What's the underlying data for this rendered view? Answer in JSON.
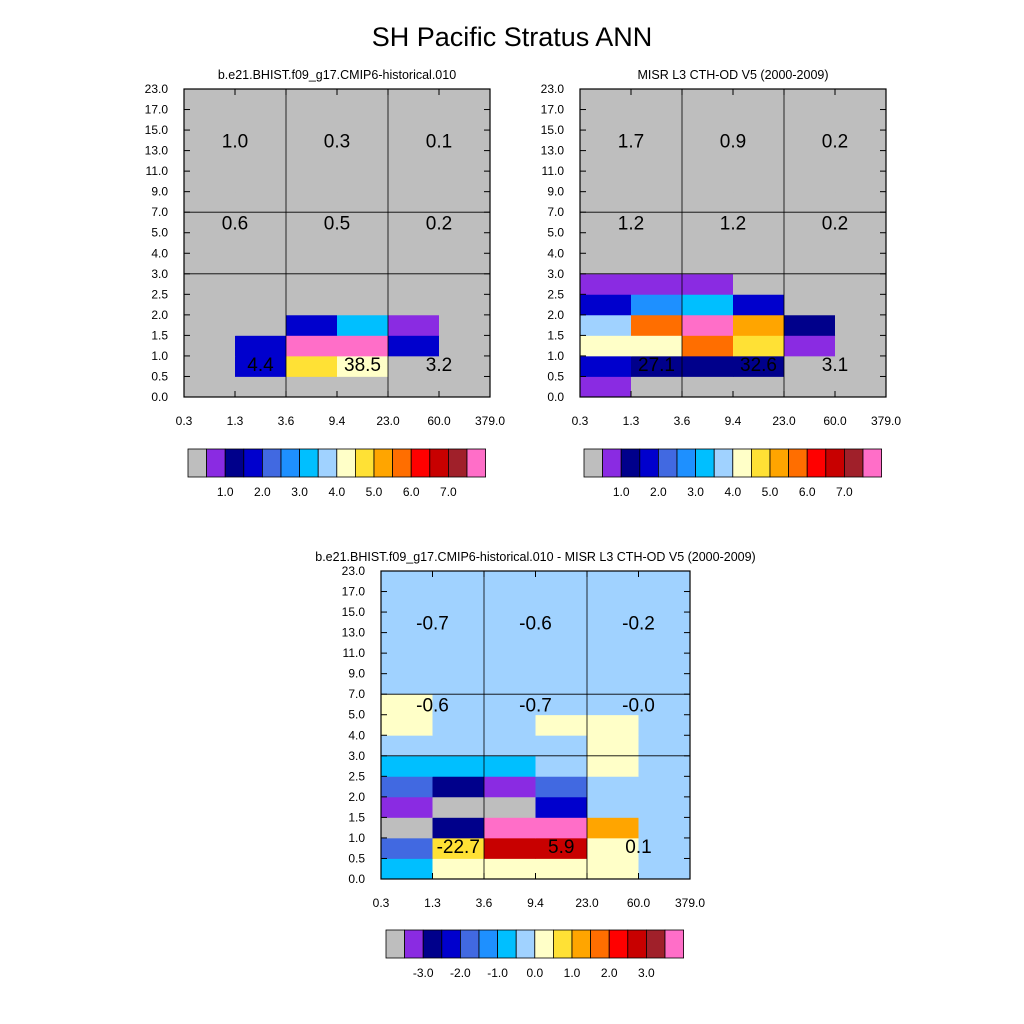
{
  "title": "SH Pacific Stratus ANN",
  "colors": {
    "missing": "#bebebe",
    "border": "#000000",
    "divider": "#000000"
  },
  "palette": [
    "#bebebe",
    "#8a2be2",
    "#00008b",
    "#0000cd",
    "#4169e1",
    "#1e90ff",
    "#00bfff",
    "#a0d2ff",
    "#ffffc8",
    "#ffe135",
    "#ffa500",
    "#ff6e00",
    "#ff0000",
    "#c80000",
    "#a0202a",
    "#ff6ec8"
  ],
  "x_ticks": [
    "0.3",
    "1.3",
    "3.6",
    "9.4",
    "23.0",
    "60.0",
    "379.0"
  ],
  "y_ticks": [
    "0.0",
    "0.5",
    "1.0",
    "1.5",
    "2.0",
    "2.5",
    "3.0",
    "4.0",
    "5.0",
    "7.0",
    "9.0",
    "11.0",
    "13.0",
    "15.0",
    "17.0",
    "23.0"
  ],
  "chart_data": [
    {
      "type": "heatmap",
      "title": "b.e21.BHIST.f09_g17.CMIP6-historical.010",
      "xlabel": "",
      "ylabel": "",
      "x_bins": [
        "0.3",
        "1.3",
        "3.6",
        "9.4",
        "23.0",
        "60.0",
        "379.0"
      ],
      "y_bins": [
        "0.0",
        "0.5",
        "1.0",
        "1.5",
        "2.0",
        "2.5",
        "3.0",
        "4.0",
        "5.0",
        "7.0",
        "9.0",
        "11.0",
        "13.0",
        "15.0",
        "17.0",
        "23.0"
      ],
      "cell_color_index": [
        [
          0,
          0,
          0,
          0,
          0,
          0
        ],
        [
          0,
          3,
          9,
          8,
          0,
          0
        ],
        [
          0,
          3,
          15,
          15,
          3,
          0
        ],
        [
          0,
          0,
          3,
          6,
          1,
          0
        ],
        [
          0,
          0,
          0,
          0,
          0,
          0
        ],
        [
          0,
          0,
          0,
          0,
          0,
          0
        ],
        [
          0,
          0,
          0,
          0,
          0,
          0
        ],
        [
          0,
          0,
          0,
          0,
          0,
          0
        ],
        [
          0,
          0,
          0,
          0,
          0,
          0
        ],
        [
          0,
          0,
          0,
          0,
          0,
          0
        ],
        [
          0,
          0,
          0,
          0,
          0,
          0
        ],
        [
          0,
          0,
          0,
          0,
          0,
          0
        ],
        [
          0,
          0,
          0,
          0,
          0,
          0
        ],
        [
          0,
          0,
          0,
          0,
          0,
          0
        ],
        [
          0,
          0,
          0,
          0,
          0,
          0
        ]
      ],
      "summary_values": [
        {
          "value": "4.4",
          "x": 1.5,
          "y": 1.6
        },
        {
          "value": "38.5",
          "x": 3.5,
          "y": 1.6
        },
        {
          "value": "3.2",
          "x": 5,
          "y": 1.6
        },
        {
          "value": "0.6",
          "x": 1,
          "y": 8.5
        },
        {
          "value": "0.5",
          "x": 3,
          "y": 8.5
        },
        {
          "value": "0.2",
          "x": 5,
          "y": 8.5
        },
        {
          "value": "1.0",
          "x": 1,
          "y": 12.5
        },
        {
          "value": "0.3",
          "x": 3,
          "y": 12.5
        },
        {
          "value": "0.1",
          "x": 5,
          "y": 12.5
        }
      ],
      "colorbar_labels": [
        "1.0",
        "2.0",
        "3.0",
        "4.0",
        "5.0",
        "6.0",
        "7.0"
      ]
    },
    {
      "type": "heatmap",
      "title": "MISR L3 CTH-OD V5 (2000-2009)",
      "xlabel": "",
      "ylabel": "",
      "x_bins": [
        "0.3",
        "1.3",
        "3.6",
        "9.4",
        "23.0",
        "60.0",
        "379.0"
      ],
      "y_bins": [
        "0.0",
        "0.5",
        "1.0",
        "1.5",
        "2.0",
        "2.5",
        "3.0",
        "4.0",
        "5.0",
        "7.0",
        "9.0",
        "11.0",
        "13.0",
        "15.0",
        "17.0",
        "23.0"
      ],
      "cell_color_index": [
        [
          1,
          0,
          0,
          0,
          0,
          0
        ],
        [
          3,
          2,
          2,
          2,
          0,
          0
        ],
        [
          8,
          8,
          11,
          9,
          1,
          0
        ],
        [
          7,
          11,
          15,
          10,
          2,
          0
        ],
        [
          3,
          5,
          6,
          3,
          0,
          0
        ],
        [
          1,
          1,
          1,
          0,
          0,
          0
        ],
        [
          0,
          0,
          0,
          0,
          0,
          0
        ],
        [
          0,
          0,
          0,
          0,
          0,
          0
        ],
        [
          0,
          0,
          0,
          0,
          0,
          0
        ],
        [
          0,
          0,
          0,
          0,
          0,
          0
        ],
        [
          0,
          0,
          0,
          0,
          0,
          0
        ],
        [
          0,
          0,
          0,
          0,
          0,
          0
        ],
        [
          0,
          0,
          0,
          0,
          0,
          0
        ],
        [
          0,
          0,
          0,
          0,
          0,
          0
        ],
        [
          0,
          0,
          0,
          0,
          0,
          0
        ]
      ],
      "summary_values": [
        {
          "value": "27.1",
          "x": 1.5,
          "y": 1.6
        },
        {
          "value": "32.6",
          "x": 3.5,
          "y": 1.6
        },
        {
          "value": "3.1",
          "x": 5,
          "y": 1.6
        },
        {
          "value": "1.2",
          "x": 1,
          "y": 8.5
        },
        {
          "value": "1.2",
          "x": 3,
          "y": 8.5
        },
        {
          "value": "0.2",
          "x": 5,
          "y": 8.5
        },
        {
          "value": "1.7",
          "x": 1,
          "y": 12.5
        },
        {
          "value": "0.9",
          "x": 3,
          "y": 12.5
        },
        {
          "value": "0.2",
          "x": 5,
          "y": 12.5
        }
      ],
      "colorbar_labels": [
        "1.0",
        "2.0",
        "3.0",
        "4.0",
        "5.0",
        "6.0",
        "7.0"
      ]
    },
    {
      "type": "heatmap",
      "title": "b.e21.BHIST.f09_g17.CMIP6-historical.010 - MISR L3 CTH-OD V5 (2000-2009)",
      "xlabel": "",
      "ylabel": "",
      "x_bins": [
        "0.3",
        "1.3",
        "3.6",
        "9.4",
        "23.0",
        "60.0",
        "379.0"
      ],
      "y_bins": [
        "0.0",
        "0.5",
        "1.0",
        "1.5",
        "2.0",
        "2.5",
        "3.0",
        "4.0",
        "5.0",
        "7.0",
        "9.0",
        "11.0",
        "13.0",
        "15.0",
        "17.0",
        "23.0"
      ],
      "cell_color_index": [
        [
          6,
          8,
          8,
          8,
          8,
          7
        ],
        [
          4,
          9,
          13,
          13,
          8,
          7
        ],
        [
          0,
          2,
          15,
          15,
          10,
          7
        ],
        [
          1,
          0,
          0,
          3,
          7,
          7
        ],
        [
          4,
          2,
          1,
          4,
          7,
          7
        ],
        [
          6,
          6,
          6,
          7,
          8,
          7
        ],
        [
          7,
          7,
          7,
          7,
          8,
          7
        ],
        [
          8,
          7,
          7,
          8,
          8,
          7
        ],
        [
          8,
          7,
          7,
          7,
          7,
          7
        ],
        [
          7,
          7,
          7,
          7,
          7,
          7
        ],
        [
          7,
          7,
          7,
          7,
          7,
          7
        ],
        [
          7,
          7,
          7,
          7,
          7,
          7
        ],
        [
          7,
          7,
          7,
          7,
          7,
          7
        ],
        [
          7,
          7,
          7,
          7,
          7,
          7
        ],
        [
          7,
          7,
          7,
          7,
          7,
          7
        ]
      ],
      "summary_values": [
        {
          "value": "-22.7",
          "x": 1.5,
          "y": 1.6
        },
        {
          "value": "5.9",
          "x": 3.5,
          "y": 1.6
        },
        {
          "value": "0.1",
          "x": 5,
          "y": 1.6
        },
        {
          "value": "-0.6",
          "x": 1,
          "y": 8.5
        },
        {
          "value": "-0.7",
          "x": 3,
          "y": 8.5
        },
        {
          "value": "-0.0",
          "x": 5,
          "y": 8.5
        },
        {
          "value": "-0.7",
          "x": 1,
          "y": 12.5
        },
        {
          "value": "-0.6",
          "x": 3,
          "y": 12.5
        },
        {
          "value": "-0.2",
          "x": 5,
          "y": 12.5
        }
      ],
      "colorbar_labels": [
        "-3.0",
        "-2.0",
        "-1.0",
        "0.0",
        "1.0",
        "2.0",
        "3.0"
      ]
    }
  ]
}
